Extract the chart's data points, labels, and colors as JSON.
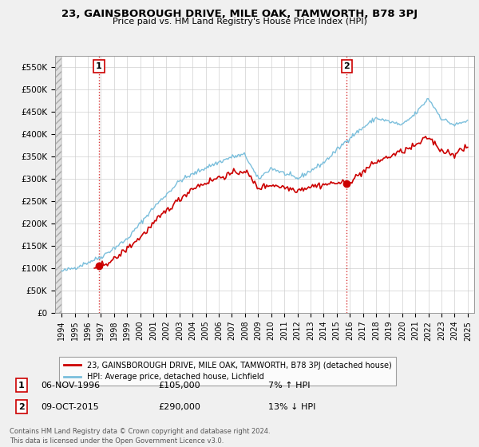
{
  "title": "23, GAINSBOROUGH DRIVE, MILE OAK, TAMWORTH, B78 3PJ",
  "subtitle": "Price paid vs. HM Land Registry's House Price Index (HPI)",
  "ylim": [
    0,
    575000
  ],
  "yticks": [
    0,
    50000,
    100000,
    150000,
    200000,
    250000,
    300000,
    350000,
    400000,
    450000,
    500000,
    550000
  ],
  "ytick_labels": [
    "£0",
    "£50K",
    "£100K",
    "£150K",
    "£200K",
    "£250K",
    "£300K",
    "£350K",
    "£400K",
    "£450K",
    "£500K",
    "£550K"
  ],
  "hpi_color": "#7bbfdc",
  "price_color": "#cc0000",
  "marker_color": "#cc0000",
  "sale1_year": 1996.85,
  "sale1_price": 105000,
  "sale2_year": 2015.77,
  "sale2_price": 290000,
  "sale1_date": "06-NOV-1996",
  "sale1_amount": "£105,000",
  "sale1_hpi": "7% ↑ HPI",
  "sale2_date": "09-OCT-2015",
  "sale2_amount": "£290,000",
  "sale2_hpi": "13% ↓ HPI",
  "legend_house": "23, GAINSBOROUGH DRIVE, MILE OAK, TAMWORTH, B78 3PJ (detached house)",
  "legend_hpi": "HPI: Average price, detached house, Lichfield",
  "footnote": "Contains HM Land Registry data © Crown copyright and database right 2024.\nThis data is licensed under the Open Government Licence v3.0.",
  "xmin": 1993.5,
  "xmax": 2025.5,
  "background_color": "#f0f0f0",
  "plot_bg_color": "#ffffff"
}
